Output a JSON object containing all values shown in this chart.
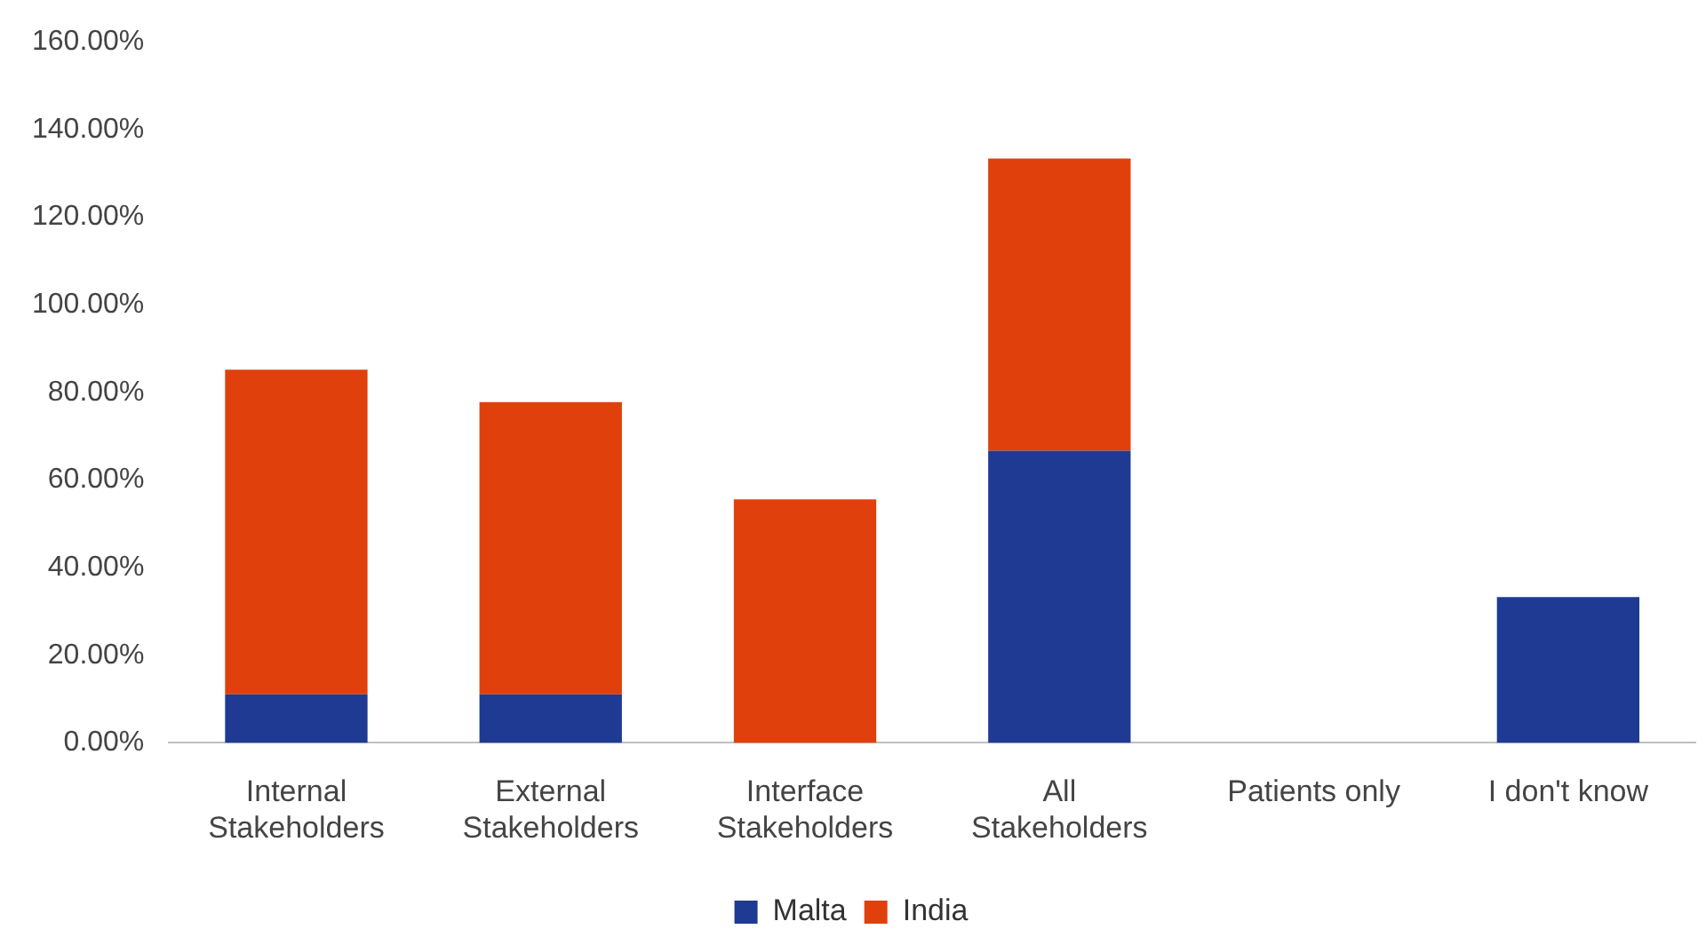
{
  "chart_data": {
    "type": "bar",
    "stacked": true,
    "categories": [
      "Internal\nStakeholders",
      "External\nStakeholders",
      "Interface\nStakeholders",
      "All\nStakeholders",
      "Patients only",
      "I don't know"
    ],
    "series": [
      {
        "name": "Malta",
        "color": "#1f3a93",
        "values": [
          11.1,
          11.1,
          0,
          66.7,
          0,
          33.3
        ]
      },
      {
        "name": "India",
        "color": "#e0400c",
        "values": [
          74.1,
          66.7,
          55.6,
          66.7,
          0,
          0
        ]
      }
    ],
    "ylim": [
      0,
      160
    ],
    "yticks": [
      {
        "value": 0,
        "label": "0.00%"
      },
      {
        "value": 20,
        "label": "20.00%"
      },
      {
        "value": 40,
        "label": "40.00%"
      },
      {
        "value": 60,
        "label": "60.00%"
      },
      {
        "value": 80,
        "label": "80.00%"
      },
      {
        "value": 100,
        "label": "100.00%"
      },
      {
        "value": 120,
        "label": "120.00%"
      },
      {
        "value": 140,
        "label": "140.00%"
      },
      {
        "value": 160,
        "label": "160.00%"
      }
    ],
    "grid": false,
    "legend": "bottom"
  }
}
